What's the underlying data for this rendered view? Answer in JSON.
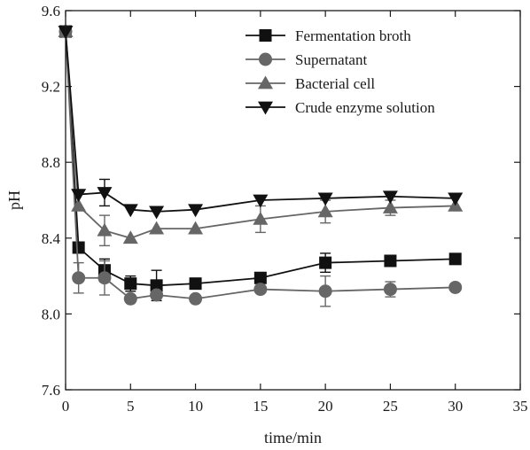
{
  "chart_data": {
    "type": "line",
    "title": "",
    "xlabel": "time/min",
    "ylabel": "pH",
    "xlim": [
      0,
      35
    ],
    "ylim": [
      7.6,
      9.6
    ],
    "xticks": [
      "0",
      "5",
      "10",
      "15",
      "20",
      "25",
      "30",
      "35"
    ],
    "yticks": [
      "7.6",
      "8.0",
      "8.4",
      "8.8",
      "9.2",
      "9.6"
    ],
    "grid": false,
    "legend_position": "top-right",
    "series": [
      {
        "name": "Fermentation broth",
        "marker": "square",
        "color": "#111111",
        "x": [
          0,
          1,
          3,
          5,
          7,
          10,
          15,
          20,
          25,
          30
        ],
        "y": [
          9.49,
          8.35,
          8.23,
          8.16,
          8.15,
          8.16,
          8.19,
          8.27,
          8.28,
          8.29
        ],
        "error": [
          0,
          0,
          0.06,
          0.04,
          0.08,
          0,
          0,
          0.05,
          0,
          0
        ]
      },
      {
        "name": "Supernatant",
        "marker": "circle",
        "color": "#666666",
        "x": [
          0,
          1,
          3,
          5,
          7,
          10,
          15,
          20,
          25,
          30
        ],
        "y": [
          9.49,
          8.19,
          8.19,
          8.08,
          8.1,
          8.08,
          8.13,
          8.12,
          8.13,
          8.14
        ],
        "error": [
          0,
          0.08,
          0.09,
          0,
          0,
          0,
          0,
          0.08,
          0.04,
          0
        ]
      },
      {
        "name": "Bacterial cell",
        "marker": "triangle-up",
        "color": "#666666",
        "x": [
          0,
          1,
          3,
          5,
          7,
          10,
          15,
          20,
          25,
          30
        ],
        "y": [
          9.49,
          8.57,
          8.44,
          8.4,
          8.45,
          8.45,
          8.5,
          8.54,
          8.56,
          8.57
        ],
        "error": [
          0,
          0,
          0.08,
          0,
          0,
          0,
          0.07,
          0.06,
          0.04,
          0
        ]
      },
      {
        "name": "Crude enzyme solution",
        "marker": "triangle-down",
        "color": "#111111",
        "x": [
          0,
          1,
          3,
          5,
          7,
          10,
          15,
          20,
          25,
          30
        ],
        "y": [
          9.49,
          8.63,
          8.64,
          8.55,
          8.54,
          8.55,
          8.6,
          8.61,
          8.62,
          8.61
        ],
        "error": [
          0,
          0,
          0.07,
          0,
          0,
          0,
          0,
          0,
          0,
          0
        ]
      }
    ]
  }
}
